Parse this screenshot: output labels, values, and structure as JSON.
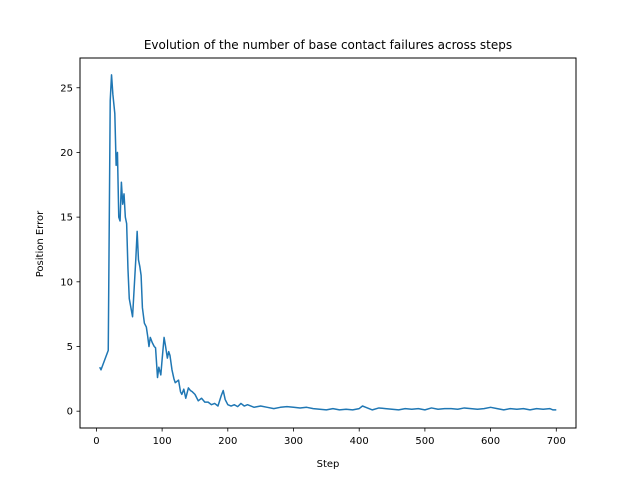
{
  "chart_data": {
    "type": "line",
    "title": "Evolution of the number of base contact failures across steps",
    "xlabel": "Step",
    "ylabel": "Position Error",
    "xlim": [
      -25,
      730
    ],
    "ylim": [
      -1.3,
      27.3
    ],
    "xticks": [
      0,
      100,
      200,
      300,
      400,
      500,
      600,
      700
    ],
    "yticks": [
      0,
      5,
      10,
      15,
      20,
      25
    ],
    "grid": false,
    "series": [
      {
        "color": "#1f77b4",
        "x": [
          5,
          7,
          18,
          21,
          23,
          25,
          28,
          30,
          32,
          34,
          36,
          38,
          40,
          42,
          44,
          46,
          48,
          50,
          55,
          60,
          62,
          64,
          66,
          68,
          70,
          73,
          76,
          78,
          80,
          82,
          85,
          88,
          90,
          93,
          95,
          98,
          100,
          103,
          105,
          108,
          110,
          112,
          115,
          118,
          120,
          125,
          128,
          130,
          133,
          136,
          140,
          143,
          146,
          150,
          155,
          160,
          165,
          170,
          175,
          180,
          185,
          190,
          193,
          196,
          200,
          205,
          210,
          215,
          220,
          225,
          230,
          240,
          250,
          260,
          270,
          280,
          290,
          300,
          310,
          320,
          330,
          340,
          350,
          360,
          370,
          380,
          390,
          400,
          405,
          410,
          420,
          430,
          440,
          450,
          460,
          470,
          480,
          490,
          500,
          510,
          520,
          530,
          540,
          550,
          560,
          570,
          580,
          590,
          600,
          610,
          620,
          630,
          640,
          650,
          660,
          670,
          680,
          690,
          695,
          700
        ],
        "y": [
          3.4,
          3.2,
          4.7,
          24,
          26,
          24.5,
          23,
          19,
          20,
          15,
          14.7,
          17.7,
          16,
          16.8,
          15,
          14.5,
          11,
          8.7,
          7.3,
          11.8,
          13.9,
          11.7,
          11.2,
          10.5,
          8,
          6.8,
          6.5,
          5.8,
          5,
          5.7,
          5.3,
          5,
          4.9,
          2.6,
          3.4,
          2.8,
          4,
          5.7,
          5.1,
          4.1,
          4.6,
          4.3,
          3.2,
          2.5,
          2.2,
          2.4,
          1.5,
          1.3,
          1.7,
          1.0,
          1.8,
          1.6,
          1.5,
          1.3,
          0.8,
          1.0,
          0.7,
          0.7,
          0.5,
          0.6,
          0.4,
          1.2,
          1.6,
          0.9,
          0.5,
          0.4,
          0.5,
          0.35,
          0.6,
          0.4,
          0.5,
          0.3,
          0.4,
          0.3,
          0.2,
          0.3,
          0.35,
          0.3,
          0.25,
          0.3,
          0.2,
          0.15,
          0.1,
          0.2,
          0.1,
          0.15,
          0.1,
          0.2,
          0.4,
          0.3,
          0.1,
          0.25,
          0.2,
          0.15,
          0.1,
          0.2,
          0.15,
          0.2,
          0.1,
          0.25,
          0.15,
          0.2,
          0.2,
          0.15,
          0.25,
          0.2,
          0.15,
          0.2,
          0.3,
          0.2,
          0.1,
          0.2,
          0.15,
          0.2,
          0.1,
          0.2,
          0.15,
          0.2,
          0.1,
          0.1
        ]
      }
    ]
  }
}
